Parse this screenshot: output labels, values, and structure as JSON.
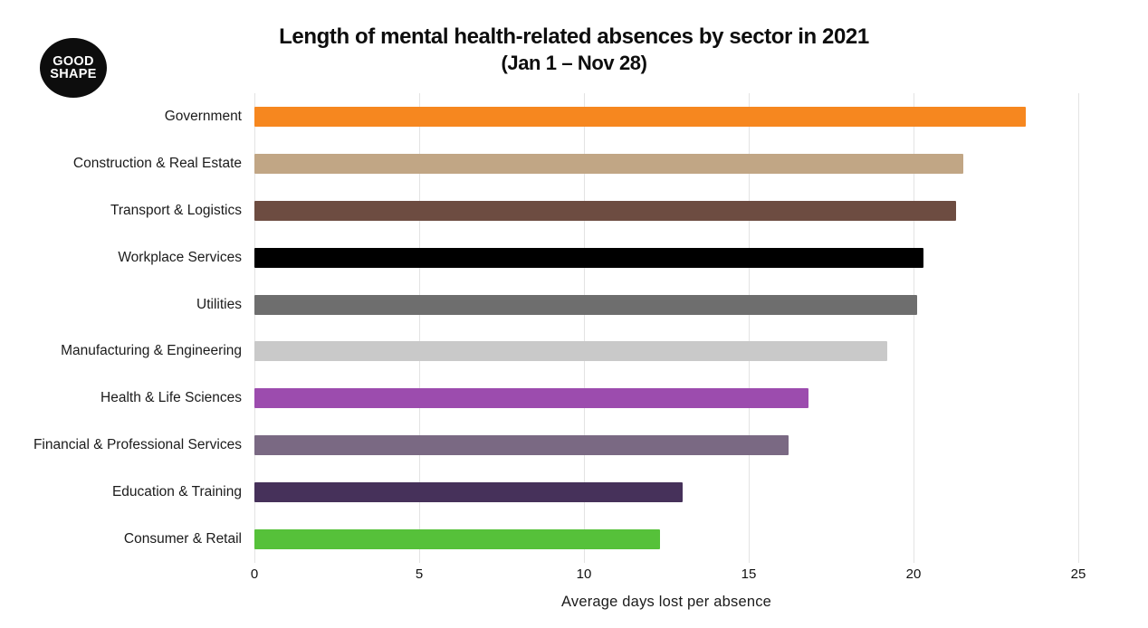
{
  "logo": {
    "line1": "GOOD",
    "line2": "SHAPE",
    "bg_color": "#0d0d0d",
    "text_color": "#ffffff"
  },
  "title": {
    "line1": "Length of mental health-related absences by sector in 2021",
    "line2": "(Jan 1 – Nov 28)"
  },
  "chart_data": {
    "type": "bar",
    "orientation": "horizontal",
    "title": "Length of mental health-related absences by sector in 2021 (Jan 1 – Nov 28)",
    "categories": [
      "Government",
      "Construction & Real Estate",
      "Transport & Logistics",
      "Workplace Services",
      "Utilities",
      "Manufacturing & Engineering",
      "Health & Life Sciences",
      "Financial & Professional Services",
      "Education & Training",
      "Consumer & Retail"
    ],
    "values": [
      23.4,
      21.5,
      21.3,
      20.3,
      20.1,
      19.2,
      16.8,
      16.2,
      13.0,
      12.3
    ],
    "colors": [
      "#F6871F",
      "#C1A685",
      "#6D4C41",
      "#000000",
      "#6E6E6E",
      "#C9C9C9",
      "#9C4CAE",
      "#7A6983",
      "#46315A",
      "#56C13A"
    ],
    "xlabel": "Average days lost per absence",
    "ylabel": "",
    "xlim": [
      0,
      25
    ],
    "xticks": [
      0,
      5,
      10,
      15,
      20,
      25
    ],
    "grid": true,
    "gridline_color": "#e3e3e3",
    "background": "#ffffff",
    "legend": "none"
  }
}
